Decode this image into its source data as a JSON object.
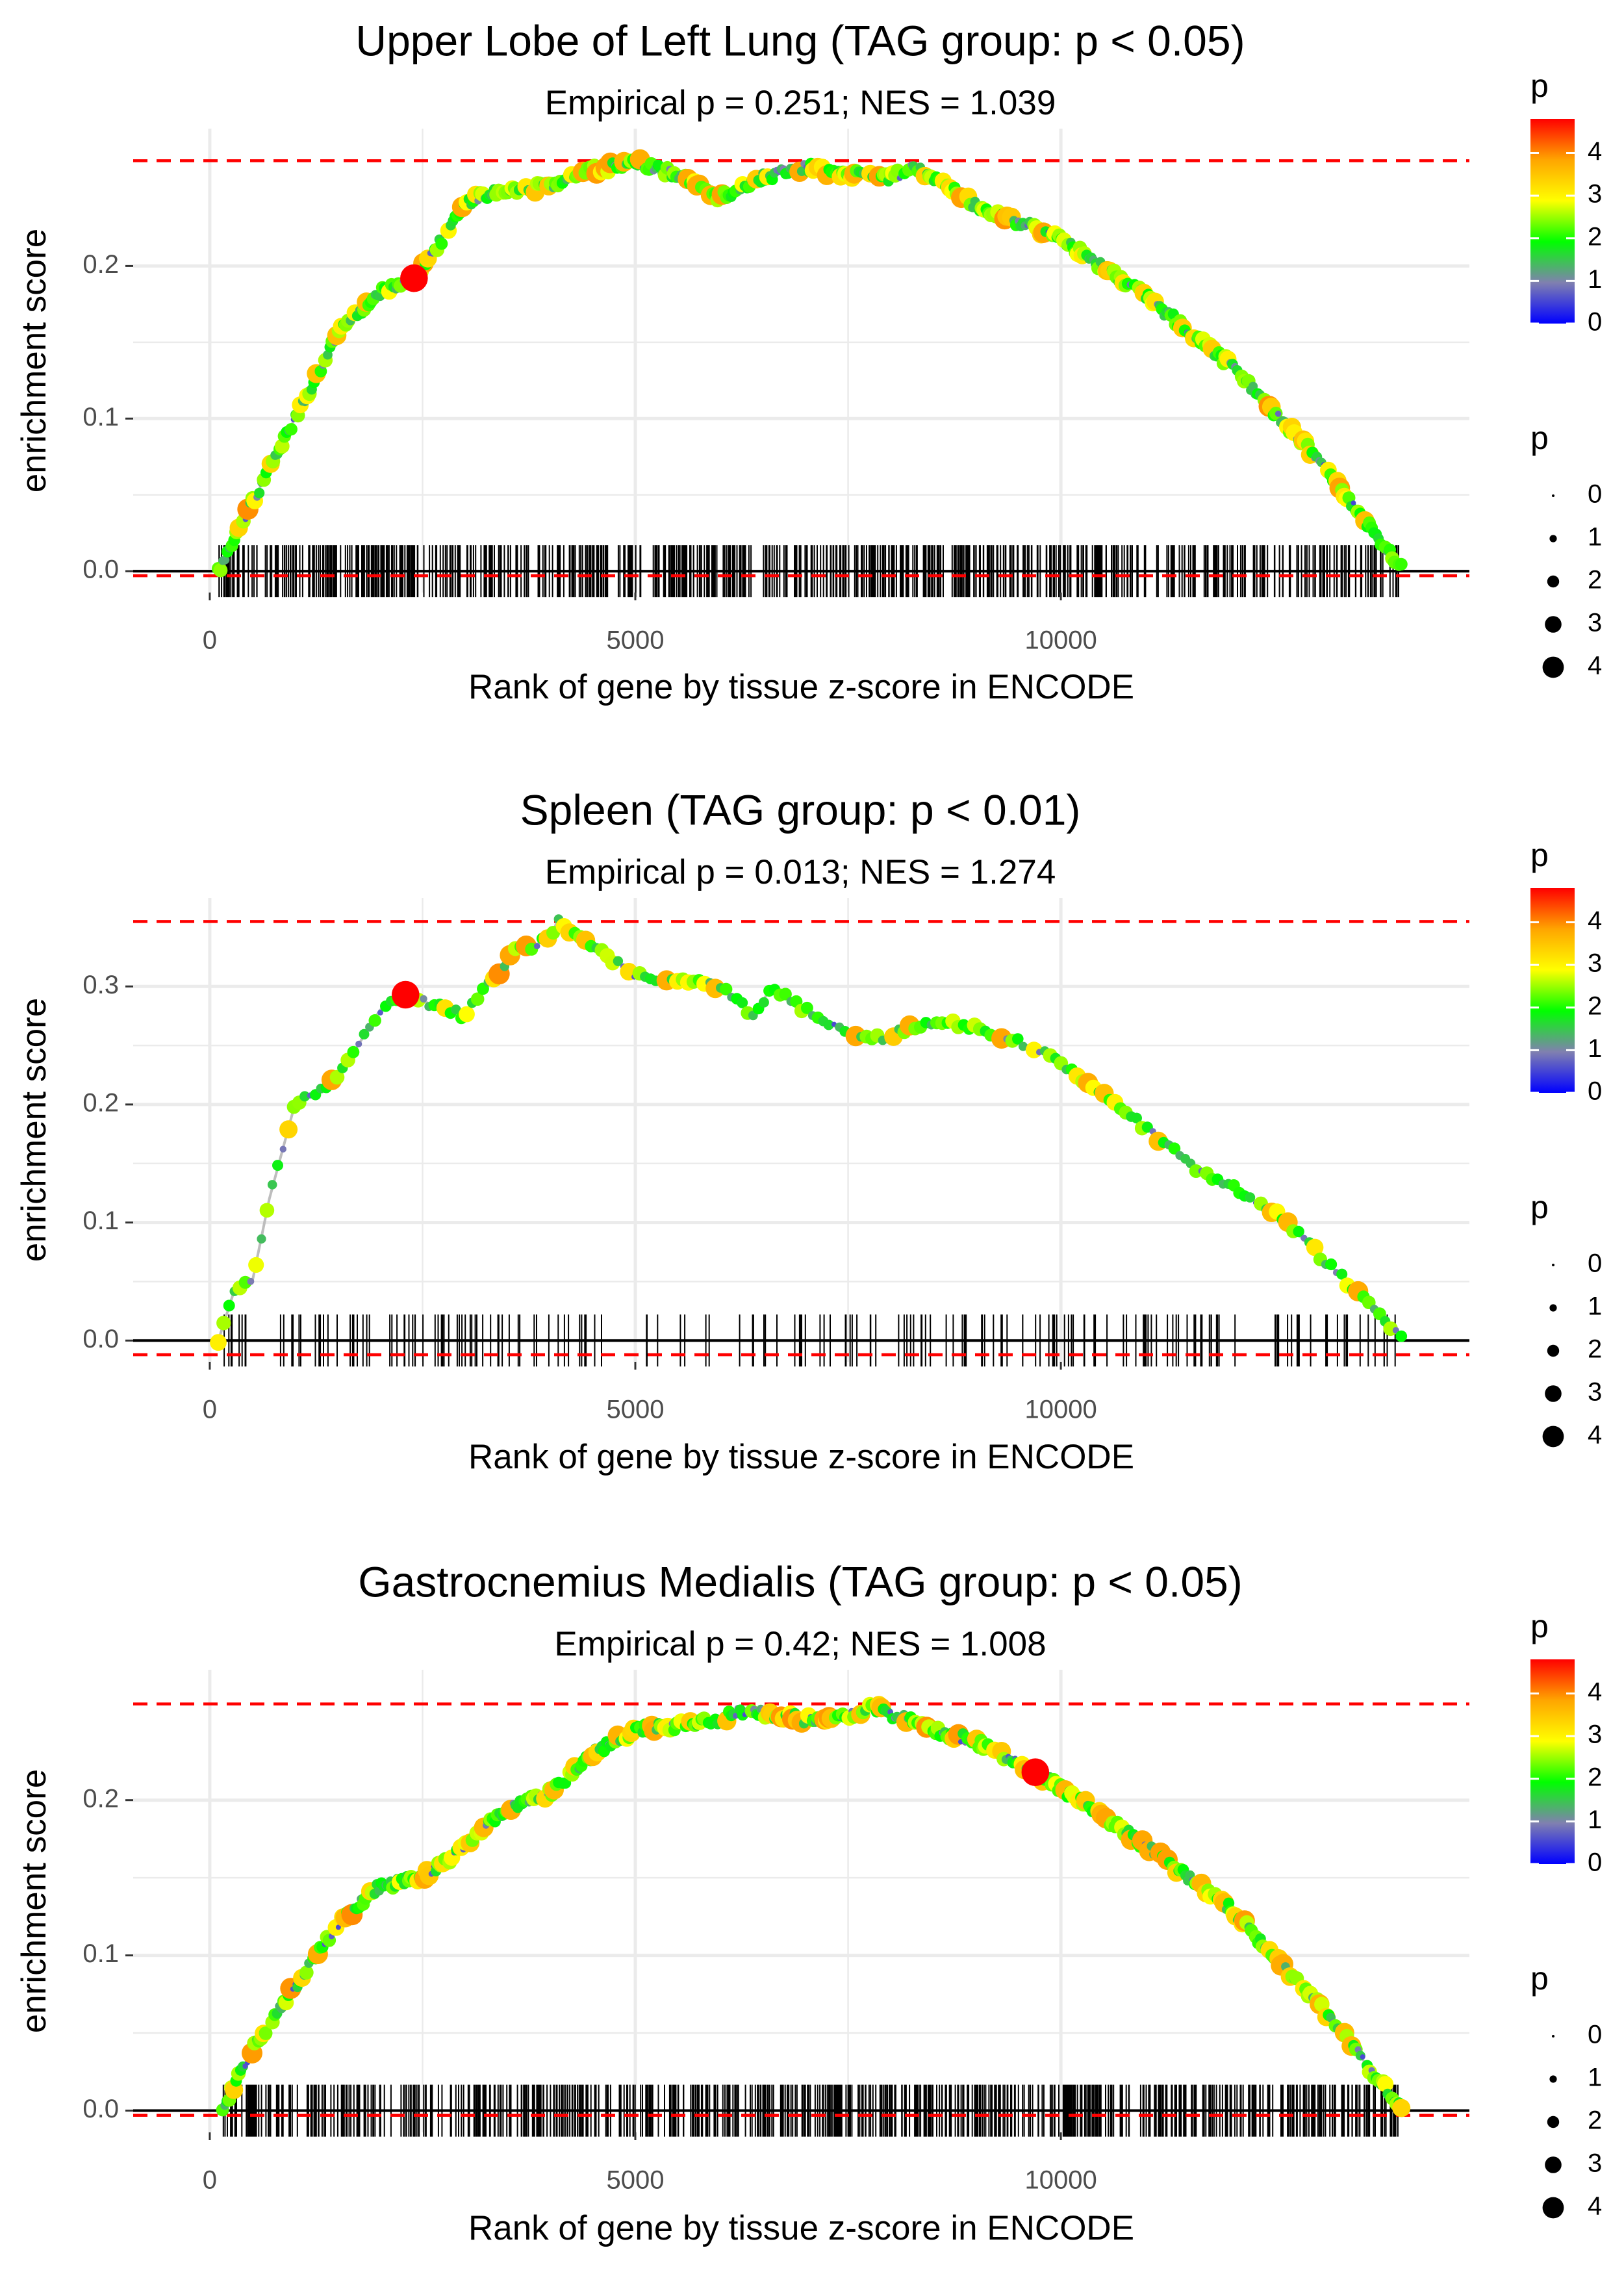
{
  "legend": {
    "color_title": "p",
    "size_title": "p",
    "color_ticks": [
      0,
      1,
      2,
      3,
      4
    ],
    "color_range": [
      0,
      4.8
    ],
    "gradient_colors": [
      "#0000ff",
      "#8080b0",
      "#00ff00",
      "#ffff00",
      "#ffa500",
      "#ff0000"
    ],
    "size_values": [
      0,
      1,
      2,
      3,
      4
    ]
  },
  "colors": {
    "path_line": "#bdbdbd",
    "max_line": "#ff0000",
    "barcode": "#000000",
    "grid": "#ebebeb"
  },
  "chart_data": [
    {
      "type": "line",
      "title": "Upper Lobe of Left Lung (TAG group: p < 0.05)",
      "subtitle": "Empirical p = 0.251; NES = 1.039",
      "xlabel": "Rank of gene by tissue z-score in ENCODE",
      "ylabel": "enrichment score",
      "xlim": [
        -900,
        14800
      ],
      "ylim": [
        -0.014,
        0.29
      ],
      "x_ticks": [
        0,
        5000,
        10000
      ],
      "x_tick_labels": [
        "0",
        "5000",
        "10000"
      ],
      "y_ticks": [
        0.0,
        0.1,
        0.2
      ],
      "y_tick_labels": [
        "0.0",
        "0.1",
        "0.2"
      ],
      "hlines": [
        0.269,
        -0.003
      ],
      "x_range": [
        100,
        14000
      ],
      "n_hits": 700,
      "seed": 11,
      "curve": [
        [
          100,
          0.0
        ],
        [
          500,
          0.045
        ],
        [
          1000,
          0.1
        ],
        [
          1500,
          0.155
        ],
        [
          2000,
          0.183
        ],
        [
          2400,
          0.193
        ],
        [
          2700,
          0.215
        ],
        [
          3000,
          0.242
        ],
        [
          3500,
          0.25
        ],
        [
          4000,
          0.252
        ],
        [
          4500,
          0.263
        ],
        [
          5000,
          0.268
        ],
        [
          5500,
          0.26
        ],
        [
          6000,
          0.245
        ],
        [
          6500,
          0.258
        ],
        [
          7000,
          0.265
        ],
        [
          7500,
          0.26
        ],
        [
          8000,
          0.258
        ],
        [
          8300,
          0.265
        ],
        [
          9000,
          0.24
        ],
        [
          10000,
          0.218
        ],
        [
          11000,
          0.18
        ],
        [
          12000,
          0.135
        ],
        [
          13000,
          0.075
        ],
        [
          14000,
          0.002
        ]
      ],
      "highlight": {
        "x": 2400,
        "y": 0.192,
        "p": 4.8
      }
    },
    {
      "type": "line",
      "title": "Spleen (TAG group: p < 0.01)",
      "subtitle": "Empirical p = 0.013; NES = 1.274",
      "xlabel": "Rank of gene by tissue z-score in ENCODE",
      "ylabel": "enrichment score",
      "xlim": [
        -900,
        14800
      ],
      "ylim": [
        -0.018,
        0.375
      ],
      "x_ticks": [
        0,
        5000,
        10000
      ],
      "x_tick_labels": [
        "0",
        "5000",
        "10000"
      ],
      "y_ticks": [
        0.0,
        0.1,
        0.2,
        0.3
      ],
      "y_tick_labels": [
        "0.0",
        "0.1",
        "0.2",
        "0.3"
      ],
      "hlines": [
        0.355,
        -0.012
      ],
      "x_range": [
        100,
        14000
      ],
      "n_hits": 190,
      "seed": 23,
      "curve": [
        [
          100,
          0.0
        ],
        [
          300,
          0.045
        ],
        [
          500,
          0.05
        ],
        [
          700,
          0.12
        ],
        [
          1000,
          0.2
        ],
        [
          1500,
          0.222
        ],
        [
          2000,
          0.28
        ],
        [
          2300,
          0.293
        ],
        [
          2600,
          0.285
        ],
        [
          3000,
          0.275
        ],
        [
          3300,
          0.305
        ],
        [
          3600,
          0.33
        ],
        [
          4000,
          0.34
        ],
        [
          4080,
          0.355
        ],
        [
          5000,
          0.31
        ],
        [
          5500,
          0.305
        ],
        [
          6000,
          0.3
        ],
        [
          6400,
          0.275
        ],
        [
          6600,
          0.3
        ],
        [
          7000,
          0.28
        ],
        [
          7500,
          0.26
        ],
        [
          7800,
          0.255
        ],
        [
          8500,
          0.27
        ],
        [
          9000,
          0.265
        ],
        [
          9800,
          0.245
        ],
        [
          10500,
          0.21
        ],
        [
          11500,
          0.15
        ],
        [
          12500,
          0.11
        ],
        [
          13500,
          0.04
        ],
        [
          14000,
          0.002
        ]
      ],
      "highlight": {
        "x": 2300,
        "y": 0.293,
        "p": 4.8
      }
    },
    {
      "type": "line",
      "title": "Gastrocnemius Medialis (TAG group: p < 0.05)",
      "subtitle": "Empirical p = 0.42; NES = 1.008",
      "xlabel": "Rank of gene by tissue z-score in ENCODE",
      "ylabel": "enrichment score",
      "xlim": [
        -900,
        14800
      ],
      "ylim": [
        -0.014,
        0.284
      ],
      "x_ticks": [
        0,
        5000,
        10000
      ],
      "x_tick_labels": [
        "0",
        "5000",
        "10000"
      ],
      "y_ticks": [
        0.0,
        0.1,
        0.2
      ],
      "y_tick_labels": [
        "0.0",
        "0.1",
        "0.2"
      ],
      "hlines": [
        0.262,
        -0.003
      ],
      "x_range": [
        150,
        14000
      ],
      "n_hits": 700,
      "seed": 37,
      "curve": [
        [
          150,
          0.0
        ],
        [
          500,
          0.04
        ],
        [
          1000,
          0.08
        ],
        [
          1500,
          0.12
        ],
        [
          2000,
          0.145
        ],
        [
          2500,
          0.15
        ],
        [
          3000,
          0.17
        ],
        [
          3500,
          0.195
        ],
        [
          4000,
          0.205
        ],
        [
          4500,
          0.23
        ],
        [
          5000,
          0.245
        ],
        [
          5500,
          0.248
        ],
        [
          6000,
          0.252
        ],
        [
          6300,
          0.258
        ],
        [
          7000,
          0.252
        ],
        [
          7500,
          0.255
        ],
        [
          7800,
          0.26
        ],
        [
          8500,
          0.245
        ],
        [
          9000,
          0.238
        ],
        [
          9700,
          0.218
        ],
        [
          10500,
          0.19
        ],
        [
          11000,
          0.17
        ],
        [
          12000,
          0.13
        ],
        [
          13000,
          0.07
        ],
        [
          14000,
          0.002
        ]
      ],
      "highlight": {
        "x": 9700,
        "y": 0.218,
        "p": 4.8
      }
    }
  ]
}
